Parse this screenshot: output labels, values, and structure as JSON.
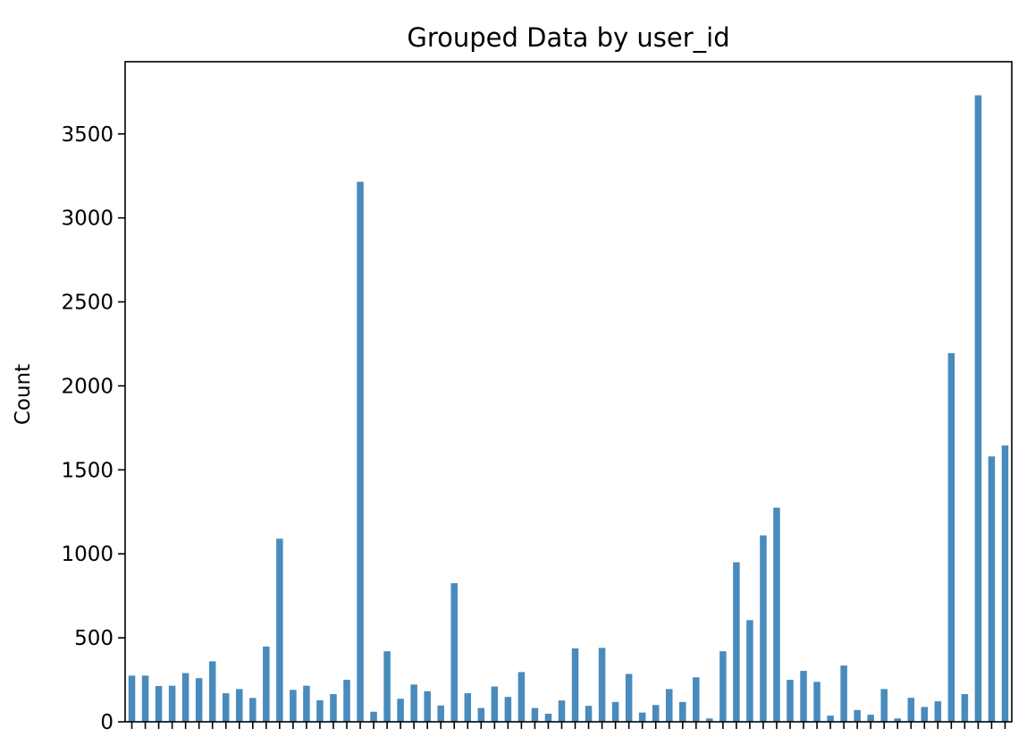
{
  "chart_data": {
    "type": "bar",
    "title": "Grouped Data by user_id",
    "xlabel": "",
    "ylabel": "Count",
    "ylim": [
      0,
      3930
    ],
    "yticks": [
      0,
      500,
      1000,
      1500,
      2000,
      2500,
      3000,
      3500
    ],
    "x_tick_labels_visible": false,
    "grid": false,
    "legend": "none",
    "bar_color": "#4a8bbd",
    "values": [
      275,
      275,
      213,
      215,
      290,
      260,
      360,
      170,
      195,
      142,
      448,
      1090,
      190,
      215,
      128,
      165,
      250,
      3215,
      60,
      420,
      137,
      222,
      182,
      97,
      825,
      170,
      82,
      210,
      148,
      296,
      82,
      48,
      127,
      437,
      95,
      440,
      118,
      285,
      55,
      100,
      195,
      118,
      265,
      20,
      420,
      950,
      605,
      1110,
      1275,
      250,
      303,
      238,
      37,
      335,
      70,
      42,
      195,
      20,
      143,
      88,
      122,
      2195,
      165,
      3730,
      1580,
      1645
    ]
  }
}
